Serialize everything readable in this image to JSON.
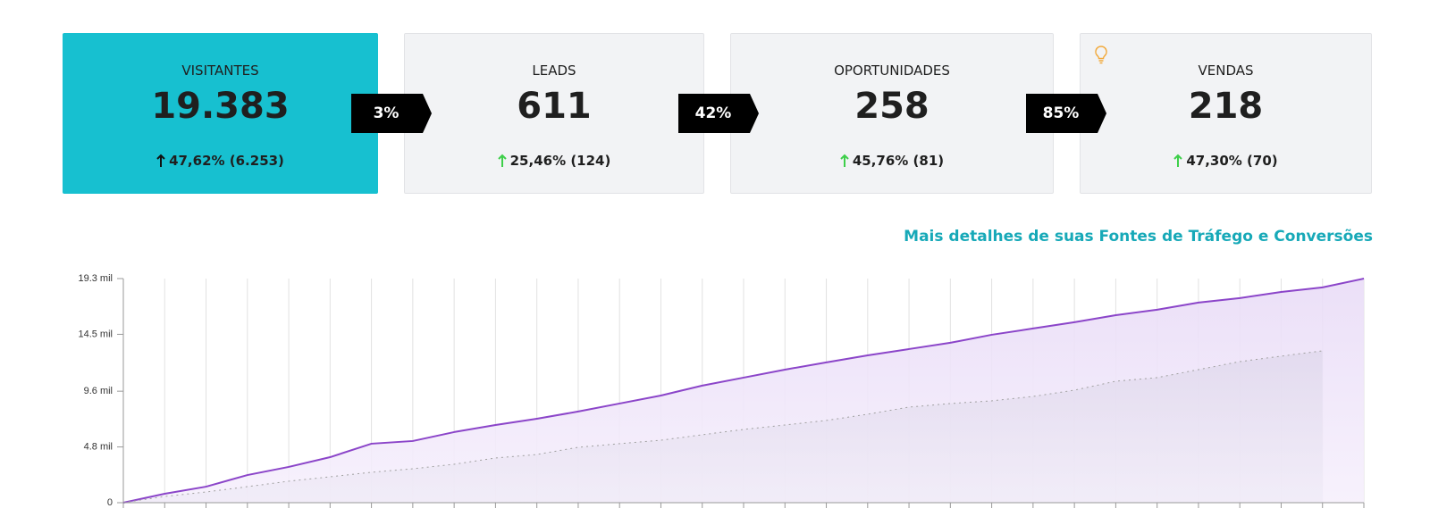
{
  "cards": [
    {
      "title": "VISITANTES",
      "value": "19.383",
      "change": "47,62% (6.253)"
    },
    {
      "title": "LEADS",
      "value": "611",
      "change": "25,46% (124)"
    },
    {
      "title": "OPORTUNIDADES",
      "value": "258",
      "change": "45,76% (81)"
    },
    {
      "title": "VENDAS",
      "value": "218",
      "change": "47,30% (70)"
    }
  ],
  "conversions": [
    "3%",
    "42%",
    "85%"
  ],
  "link": "Mais detalhes de suas Fontes de Tráfego e Conversões",
  "chart_data": {
    "type": "area",
    "categories": [
      null,
      null,
      null,
      null,
      null,
      null,
      null,
      null,
      null,
      null,
      null,
      null,
      null,
      null,
      null,
      null,
      null,
      null,
      null,
      null,
      null,
      null,
      null,
      null,
      null,
      null,
      null,
      null,
      null,
      null,
      null
    ],
    "series": [
      {
        "color": "#8b45c9",
        "line_style": "solid",
        "values": [
          0,
          770,
          1380,
          2380,
          3080,
          3920,
          5080,
          5310,
          6080,
          6690,
          7230,
          7850,
          8540,
          9230,
          10080,
          10770,
          11460,
          12080,
          12690,
          13230,
          13770,
          14460,
          15000,
          15540,
          16150,
          16620,
          17230,
          17620,
          18150,
          18540,
          19300
        ]
      },
      {
        "color": "#a0a0a0",
        "line_style": "dotted",
        "values": [
          0,
          540,
          920,
          1380,
          1850,
          2230,
          2620,
          2920,
          3310,
          3850,
          4150,
          4770,
          5080,
          5380,
          5850,
          6310,
          6690,
          7080,
          7620,
          8230,
          8540,
          8770,
          9150,
          9690,
          10460,
          10770,
          11460,
          12150,
          12620,
          13080,
          null
        ]
      }
    ],
    "ylim": [
      0,
      19300
    ],
    "yticks": [
      0,
      {
        "value": 4800,
        "label": "4.8 mil"
      },
      {
        "value": 9600,
        "label": "9.6 mil"
      },
      {
        "value": 14500,
        "label": "14.5 mil"
      },
      {
        "value": 19300,
        "label": "19.3 mil"
      }
    ],
    "grid": true
  }
}
